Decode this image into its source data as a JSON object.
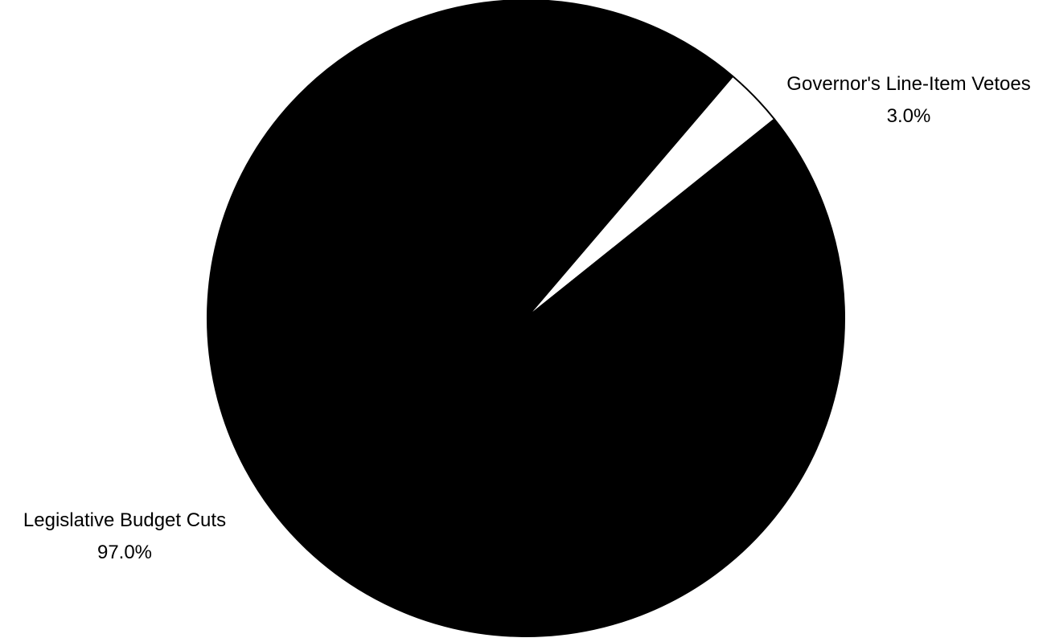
{
  "chart_data": {
    "type": "pie",
    "title": "",
    "slices": [
      {
        "label": "Governor's Line-Item Vetoes",
        "value": 3.0,
        "percent_text": "3.0%",
        "color": "#ffffff"
      },
      {
        "label": "Legislative Budget Cuts",
        "value": 97.0,
        "percent_text": "97.0%",
        "color": "#000000"
      }
    ],
    "legend": "none"
  }
}
